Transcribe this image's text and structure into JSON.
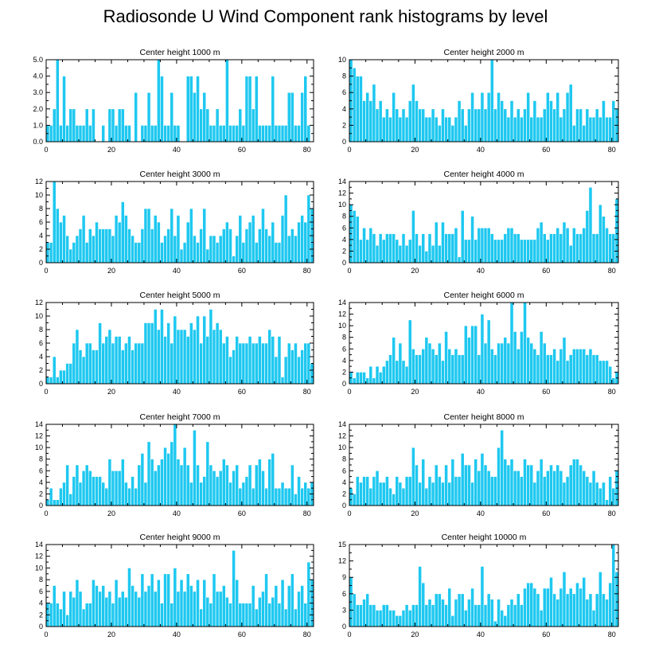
{
  "figure_title": "Radiosonde U Wind Component rank histograms by level",
  "chart_data": [
    {
      "type": "bar",
      "title": "Center height 1000 m",
      "xlim": [
        0,
        82
      ],
      "ylim": [
        0,
        5
      ],
      "xticks": [
        "0",
        "20",
        "40",
        "60",
        "80"
      ],
      "yticks": [
        "0.0",
        "1.0",
        "2.0",
        "3.0",
        "4.0",
        "5.0"
      ],
      "ytick_values": [
        0,
        1,
        2,
        3,
        4,
        5
      ],
      "values": [
        1,
        1,
        2,
        5,
        1,
        4,
        1,
        2,
        2,
        1,
        1,
        1,
        2,
        1,
        2,
        0,
        0,
        1,
        0,
        2,
        2,
        1,
        2,
        2,
        1,
        1,
        0,
        3,
        0,
        1,
        1,
        3,
        1,
        1,
        5,
        4,
        1,
        1,
        3,
        1,
        1,
        0,
        0,
        4,
        4,
        3,
        4,
        2,
        3,
        2,
        1,
        1,
        2,
        1,
        1,
        5,
        1,
        1,
        1,
        2,
        1,
        4,
        4,
        2,
        4,
        1,
        1,
        1,
        1,
        4,
        1,
        1,
        1,
        1,
        3,
        3,
        1,
        1,
        3,
        4,
        1,
        0
      ]
    },
    {
      "type": "bar",
      "title": "Center height 2000 m",
      "xlim": [
        0,
        82
      ],
      "ylim": [
        0,
        10
      ],
      "xticks": [
        "0",
        "20",
        "40",
        "60",
        "80"
      ],
      "yticks": [
        "0",
        "2",
        "4",
        "6",
        "8",
        "10"
      ],
      "ytick_values": [
        0,
        2,
        4,
        6,
        8,
        10
      ],
      "values": [
        10,
        9,
        8,
        8,
        5,
        6,
        5,
        7,
        4,
        5,
        3,
        4,
        3,
        6,
        4,
        3,
        4,
        3,
        5,
        7,
        5,
        4,
        4,
        3,
        3,
        4,
        3,
        2,
        4,
        3,
        3,
        2,
        3,
        5,
        4,
        2,
        4,
        6,
        4,
        4,
        6,
        4,
        6,
        10,
        4,
        6,
        5,
        4,
        3,
        5,
        3,
        4,
        3,
        4,
        6,
        3,
        5,
        3,
        3,
        4,
        6,
        5,
        4,
        6,
        3,
        4,
        6,
        7,
        2,
        4,
        4,
        2,
        4,
        3,
        3,
        4,
        3,
        5,
        3,
        3,
        5,
        4
      ]
    },
    {
      "type": "bar",
      "title": "Center height 3000 m",
      "xlim": [
        0,
        82
      ],
      "ylim": [
        0,
        12
      ],
      "xticks": [
        "0",
        "20",
        "40",
        "60",
        "80"
      ],
      "yticks": [
        "0",
        "2",
        "4",
        "6",
        "8",
        "10",
        "12"
      ],
      "ytick_values": [
        0,
        2,
        4,
        6,
        8,
        10,
        12
      ],
      "values": [
        3,
        3,
        12,
        8,
        6,
        7,
        4,
        2,
        3,
        4,
        5,
        7,
        3,
        5,
        4,
        6,
        5,
        5,
        5,
        5,
        4,
        7,
        6,
        9,
        7,
        5,
        4,
        3,
        3,
        5,
        8,
        8,
        5,
        7,
        6,
        3,
        4,
        5,
        8,
        4,
        7,
        2,
        3,
        6,
        8,
        4,
        3,
        5,
        8,
        2,
        4,
        4,
        3,
        4,
        5,
        6,
        5,
        1,
        4,
        7,
        3,
        5,
        6,
        7,
        3,
        5,
        8,
        5,
        4,
        6,
        3,
        3,
        7,
        10,
        4,
        5,
        4,
        6,
        7,
        6,
        10,
        8
      ]
    },
    {
      "type": "bar",
      "title": "Center height 4000 m",
      "xlim": [
        0,
        82
      ],
      "ylim": [
        0,
        14
      ],
      "xticks": [
        "0",
        "20",
        "40",
        "60",
        "80"
      ],
      "yticks": [
        "0",
        "2",
        "4",
        "6",
        "8",
        "10",
        "12",
        "14"
      ],
      "ytick_values": [
        0,
        2,
        4,
        6,
        8,
        10,
        12,
        14
      ],
      "values": [
        10,
        9,
        8,
        4,
        6,
        4,
        6,
        5,
        3,
        5,
        4,
        5,
        5,
        5,
        4,
        3,
        5,
        3,
        4,
        9,
        5,
        3,
        5,
        2,
        5,
        3,
        7,
        3,
        7,
        5,
        5,
        5,
        6,
        1,
        9,
        4,
        4,
        8,
        4,
        6,
        6,
        6,
        6,
        5,
        4,
        4,
        4,
        5,
        6,
        6,
        5,
        5,
        4,
        4,
        4,
        4,
        4,
        6,
        7,
        5,
        4,
        5,
        5,
        6,
        5,
        7,
        6,
        3,
        6,
        5,
        5,
        6,
        9,
        13,
        5,
        5,
        10,
        8,
        6,
        5,
        5,
        11
      ]
    },
    {
      "type": "bar",
      "title": "Center height 5000 m",
      "xlim": [
        0,
        82
      ],
      "ylim": [
        0,
        12
      ],
      "xticks": [
        "0",
        "20",
        "40",
        "60",
        "80"
      ],
      "yticks": [
        "0",
        "2",
        "4",
        "6",
        "8",
        "10",
        "12"
      ],
      "ytick_values": [
        0,
        2,
        4,
        6,
        8,
        10,
        12
      ],
      "values": [
        1,
        1,
        4,
        1,
        2,
        2,
        3,
        3,
        6,
        8,
        5,
        4,
        6,
        6,
        5,
        5,
        9,
        6,
        7,
        8,
        6,
        7,
        7,
        5,
        6,
        7,
        5,
        6,
        6,
        6,
        9,
        9,
        9,
        11,
        8,
        11,
        7,
        9,
        6,
        10,
        8,
        8,
        8,
        7,
        9,
        8,
        10,
        6,
        10,
        7,
        11,
        8,
        9,
        8,
        6,
        7,
        4,
        5,
        7,
        6,
        6,
        6,
        7,
        6,
        6,
        7,
        6,
        6,
        8,
        7,
        4,
        7,
        1,
        4,
        6,
        5,
        6,
        4,
        5,
        6,
        6,
        3
      ]
    },
    {
      "type": "bar",
      "title": "Center height 6000 m",
      "xlim": [
        0,
        82
      ],
      "ylim": [
        0,
        14
      ],
      "xticks": [
        "0",
        "20",
        "40",
        "60",
        "80"
      ],
      "yticks": [
        "0",
        "2",
        "4",
        "6",
        "8",
        "10",
        "12",
        "14"
      ],
      "ytick_values": [
        0,
        2,
        4,
        6,
        8,
        10,
        12,
        14
      ],
      "values": [
        2,
        1,
        2,
        2,
        2,
        1,
        3,
        1,
        3,
        2,
        3,
        4,
        5,
        8,
        4,
        7,
        4,
        3,
        11,
        6,
        5,
        5,
        6,
        8,
        7,
        6,
        5,
        7,
        4,
        9,
        6,
        5,
        6,
        5,
        5,
        10,
        8,
        10,
        10,
        5,
        12,
        7,
        11,
        6,
        5,
        7,
        7,
        8,
        7,
        14,
        9,
        6,
        9,
        14,
        8,
        7,
        6,
        5,
        9,
        7,
        5,
        5,
        6,
        4,
        6,
        8,
        4,
        5,
        6,
        6,
        6,
        6,
        5,
        6,
        5,
        5,
        4,
        4,
        4,
        3,
        1,
        2
      ]
    },
    {
      "type": "bar",
      "title": "Center height 7000 m",
      "xlim": [
        0,
        82
      ],
      "ylim": [
        0,
        14
      ],
      "xticks": [
        "0",
        "20",
        "40",
        "60",
        "80"
      ],
      "yticks": [
        "0",
        "2",
        "4",
        "6",
        "8",
        "10",
        "12",
        "14"
      ],
      "ytick_values": [
        0,
        2,
        4,
        6,
        8,
        10,
        12,
        14
      ],
      "values": [
        1,
        3,
        1,
        1,
        3,
        4,
        7,
        2,
        5,
        7,
        4,
        6,
        7,
        6,
        5,
        5,
        5,
        4,
        3,
        8,
        6,
        6,
        6,
        8,
        4,
        3,
        5,
        3,
        7,
        9,
        4,
        11,
        8,
        6,
        7,
        8,
        10,
        9,
        11,
        14,
        8,
        7,
        10,
        7,
        4,
        13,
        7,
        4,
        5,
        11,
        7,
        6,
        5,
        6,
        8,
        7,
        4,
        6,
        7,
        3,
        4,
        5,
        7,
        3,
        7,
        8,
        6,
        3,
        8,
        9,
        3,
        3,
        4,
        3,
        3,
        7,
        2,
        5,
        3,
        4,
        3,
        4
      ]
    },
    {
      "type": "bar",
      "title": "Center height 8000 m",
      "xlim": [
        0,
        82
      ],
      "ylim": [
        0,
        14
      ],
      "xticks": [
        "0",
        "20",
        "40",
        "60",
        "80"
      ],
      "yticks": [
        "0",
        "2",
        "4",
        "6",
        "8",
        "10",
        "12",
        "14"
      ],
      "ytick_values": [
        0,
        2,
        4,
        6,
        8,
        10,
        12,
        14
      ],
      "values": [
        3,
        2,
        5,
        4,
        5,
        5,
        3,
        5,
        6,
        4,
        4,
        5,
        3,
        2,
        5,
        4,
        3,
        5,
        5,
        10,
        7,
        4,
        8,
        3,
        5,
        4,
        7,
        5,
        4,
        7,
        4,
        8,
        5,
        5,
        9,
        7,
        7,
        4,
        8,
        6,
        9,
        7,
        6,
        5,
        5,
        10,
        13,
        8,
        7,
        8,
        6,
        6,
        5,
        8,
        7,
        7,
        4,
        6,
        8,
        5,
        6,
        7,
        6,
        7,
        6,
        4,
        5,
        7,
        8,
        8,
        7,
        6,
        5,
        4,
        6,
        4,
        3,
        4,
        1,
        5,
        3,
        6
      ]
    },
    {
      "type": "bar",
      "title": "Center height 9000 m",
      "xlim": [
        0,
        82
      ],
      "ylim": [
        0,
        14
      ],
      "xticks": [
        "0",
        "20",
        "40",
        "60",
        "80"
      ],
      "yticks": [
        "0",
        "2",
        "4",
        "6",
        "8",
        "10",
        "12",
        "14"
      ],
      "ytick_values": [
        0,
        2,
        4,
        6,
        8,
        10,
        12,
        14
      ],
      "values": [
        4,
        4,
        7,
        4,
        3,
        6,
        2,
        6,
        5,
        8,
        6,
        3,
        4,
        4,
        8,
        7,
        6,
        7,
        5,
        6,
        4,
        8,
        5,
        6,
        5,
        10,
        7,
        6,
        5,
        9,
        6,
        7,
        9,
        6,
        8,
        4,
        9,
        9,
        4,
        10,
        6,
        8,
        6,
        9,
        7,
        6,
        8,
        3,
        8,
        5,
        4,
        9,
        6,
        6,
        7,
        5,
        4,
        13,
        8,
        4,
        4,
        4,
        4,
        7,
        3,
        5,
        6,
        9,
        4,
        5,
        7,
        4,
        8,
        3,
        7,
        9,
        3,
        6,
        7,
        4,
        11,
        8
      ]
    },
    {
      "type": "bar",
      "title": "Center height 10000 m",
      "xlim": [
        0,
        82
      ],
      "ylim": [
        0,
        15
      ],
      "xticks": [
        "0",
        "20",
        "40",
        "60",
        "80"
      ],
      "yticks": [
        "0",
        "3",
        "6",
        "9",
        "12",
        "15"
      ],
      "ytick_values": [
        0,
        3,
        6,
        9,
        12,
        15
      ],
      "values": [
        9,
        6,
        4,
        4,
        5,
        6,
        4,
        4,
        3,
        3,
        4,
        4,
        3,
        3,
        2,
        2,
        3,
        4,
        3,
        4,
        4,
        11,
        8,
        4,
        5,
        4,
        6,
        6,
        5,
        4,
        7,
        2,
        5,
        6,
        6,
        3,
        5,
        7,
        4,
        4,
        11,
        4,
        6,
        5,
        1,
        5,
        3,
        2,
        4,
        5,
        4,
        6,
        4,
        7,
        8,
        8,
        7,
        6,
        3,
        7,
        7,
        9,
        6,
        5,
        7,
        10,
        6,
        7,
        6,
        8,
        7,
        9,
        5,
        6,
        3,
        6,
        10,
        6,
        5,
        8,
        15,
        10
      ]
    }
  ]
}
